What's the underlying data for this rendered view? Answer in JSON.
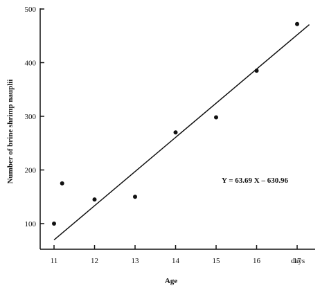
{
  "chart_data": {
    "type": "scatter",
    "xlabel": "Age",
    "ylabel": "Number of brine shrimp nauplii",
    "x_unit": "days",
    "xlim": [
      11,
      17
    ],
    "ylim": [
      50,
      500
    ],
    "x_ticks": [
      "11",
      "12",
      "13",
      "14",
      "15",
      "16",
      "17"
    ],
    "y_ticks": [
      "100",
      "200",
      "300",
      "400",
      "500"
    ],
    "grid": false,
    "series": [
      {
        "points": [
          {
            "x": 11.0,
            "y": 100
          },
          {
            "x": 11.2,
            "y": 175
          },
          {
            "x": 12.0,
            "y": 145
          },
          {
            "x": 13.0,
            "y": 150
          },
          {
            "x": 14.0,
            "y": 270
          },
          {
            "x": 15.0,
            "y": 298
          },
          {
            "x": 16.0,
            "y": 385
          },
          {
            "x": 17.0,
            "y": 472
          }
        ]
      }
    ],
    "regression": {
      "equation": "Y = 63.69 X – 630.96",
      "slope": 63.69,
      "intercept": -630.96,
      "x_start": 11.0,
      "x_end": 17.3
    },
    "colors": {
      "ink": "#111111",
      "background": "#ffffff"
    }
  }
}
